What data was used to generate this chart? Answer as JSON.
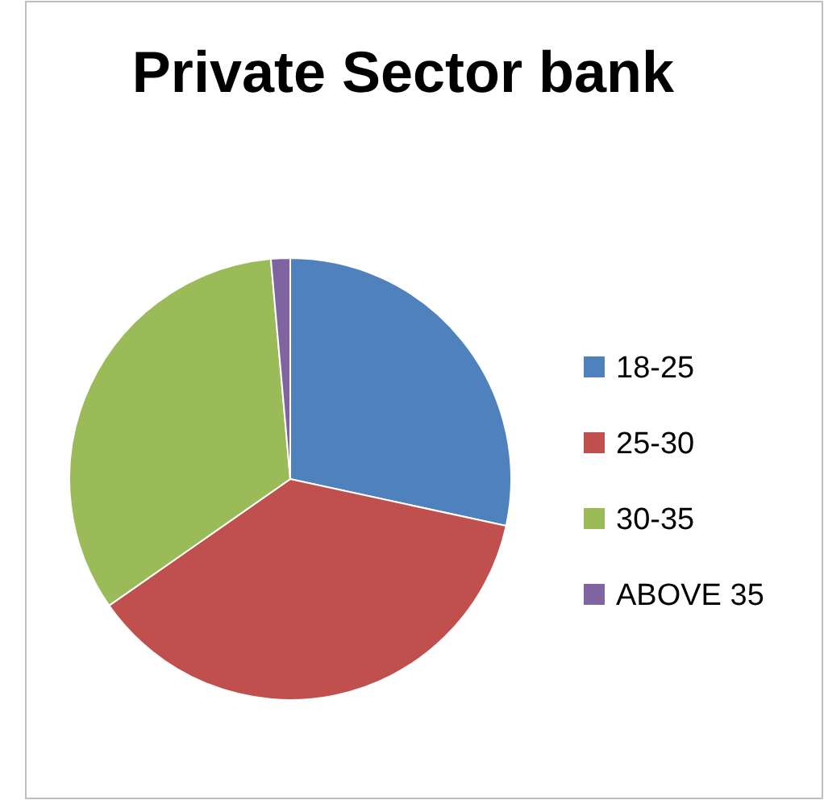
{
  "chart_data": {
    "type": "pie",
    "title": "Private Sector bank",
    "categories": [
      "18-25",
      "25-30",
      "30-35",
      "ABOVE 35"
    ],
    "values": [
      28.4,
      36.9,
      33.3,
      1.4
    ],
    "colors": [
      "#4f81bd",
      "#c0504d",
      "#9bbb59",
      "#8064a2"
    ],
    "legend": "right"
  }
}
